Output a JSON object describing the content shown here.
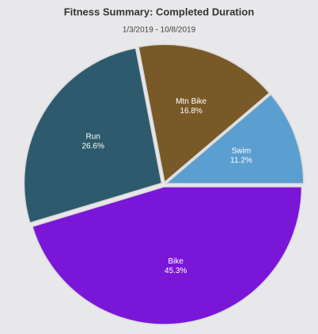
{
  "chart_data": {
    "type": "pie",
    "title": "Fitness Summary: Completed Duration",
    "subtitle": "1/3/2019 - 10/8/2019",
    "categories": [
      "Bike",
      "Run",
      "Mtn Bike",
      "Swim"
    ],
    "values": [
      45.3,
      26.6,
      16.8,
      11.2
    ],
    "value_labels": [
      "45.3%",
      "26.6%",
      "16.8%",
      "11.2%"
    ],
    "colors": [
      "#7a16d8",
      "#2e5a6d",
      "#7a5929",
      "#5a9fcf"
    ]
  }
}
